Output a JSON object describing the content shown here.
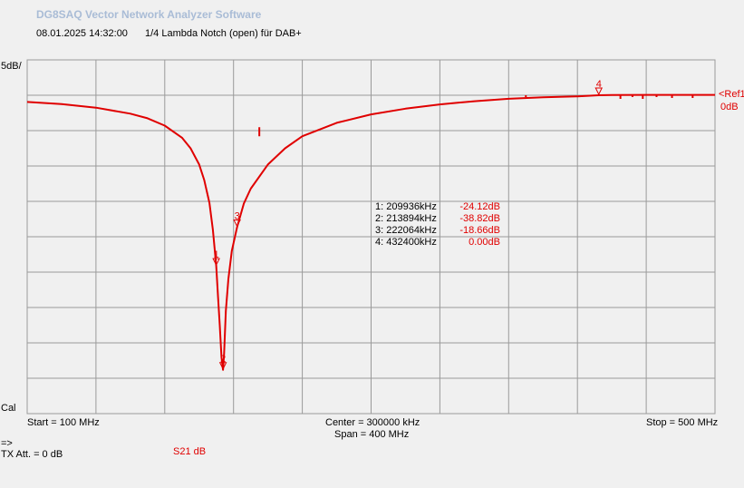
{
  "app": {
    "title": "DG8SAQ Vector Network Analyzer Software"
  },
  "header": {
    "datetime": "08.01.2025    14:32:00",
    "measurement_title": "1/4 Lambda Notch (open) für DAB+"
  },
  "scale": {
    "label": "5dB/"
  },
  "reference": {
    "label": "<Ref1",
    "value": "0dB"
  },
  "status": {
    "cal": "Cal",
    "arrow": "=>",
    "tx_att": "TX Att.  = 0 dB",
    "trace": "S21  dB"
  },
  "axis": {
    "start": "Start = 100 MHz",
    "center": "Center = 300000 kHz",
    "span": "Span = 400 MHz",
    "stop": "Stop = 500 MHz"
  },
  "markers": [
    {
      "id": "1",
      "freq": "1: 209936kHz",
      "value": "-24.12dB"
    },
    {
      "id": "2",
      "freq": "2: 213894kHz",
      "value": "-38.82dB"
    },
    {
      "id": "3",
      "freq": "3: 222064kHz",
      "value": "-18.66dB"
    },
    {
      "id": "4",
      "freq": "4: 432400kHz",
      "value": "0.00dB"
    }
  ],
  "colors": {
    "trace": "#e00000",
    "grid": "#9a9a9a",
    "plot_bg": "#f0f0f0",
    "title": "#a9bcd6"
  },
  "chart_data": {
    "type": "line",
    "x_unit": "MHz",
    "y_unit": "dB",
    "xlim": [
      100,
      500
    ],
    "ylim": [
      -45,
      5
    ],
    "grid": true,
    "series": [
      {
        "name": "S21",
        "x": [
          100,
          120,
          140,
          160,
          170,
          180,
          190,
          195,
          200,
          203,
          206,
          208,
          209.94,
          211,
          212,
          213,
          213.89,
          214.5,
          215.5,
          217,
          219,
          222.06,
          226,
          230,
          240,
          250,
          260,
          280,
          300,
          320,
          340,
          360,
          380,
          400,
          420,
          432.4,
          440,
          460,
          480,
          500
        ],
        "y": [
          -0.95,
          -1.25,
          -1.75,
          -2.6,
          -3.25,
          -4.3,
          -6.0,
          -7.5,
          -9.8,
          -12.0,
          -15.2,
          -19.0,
          -24.12,
          -28.5,
          -32.5,
          -37.0,
          -38.82,
          -36.5,
          -30.5,
          -26.0,
          -22.0,
          -18.66,
          -15.3,
          -13.2,
          -9.8,
          -7.5,
          -5.8,
          -3.9,
          -2.7,
          -1.9,
          -1.3,
          -0.85,
          -0.5,
          -0.3,
          -0.15,
          0.0,
          0.02,
          0.05,
          0.05,
          0.05
        ]
      }
    ],
    "markers": [
      {
        "id": "1",
        "x": 209.936,
        "y": -24.12
      },
      {
        "id": "2",
        "x": 213.894,
        "y": -38.82
      },
      {
        "id": "3",
        "x": 222.064,
        "y": -18.66
      },
      {
        "id": "4",
        "x": 432.4,
        "y": 0.0
      }
    ]
  }
}
